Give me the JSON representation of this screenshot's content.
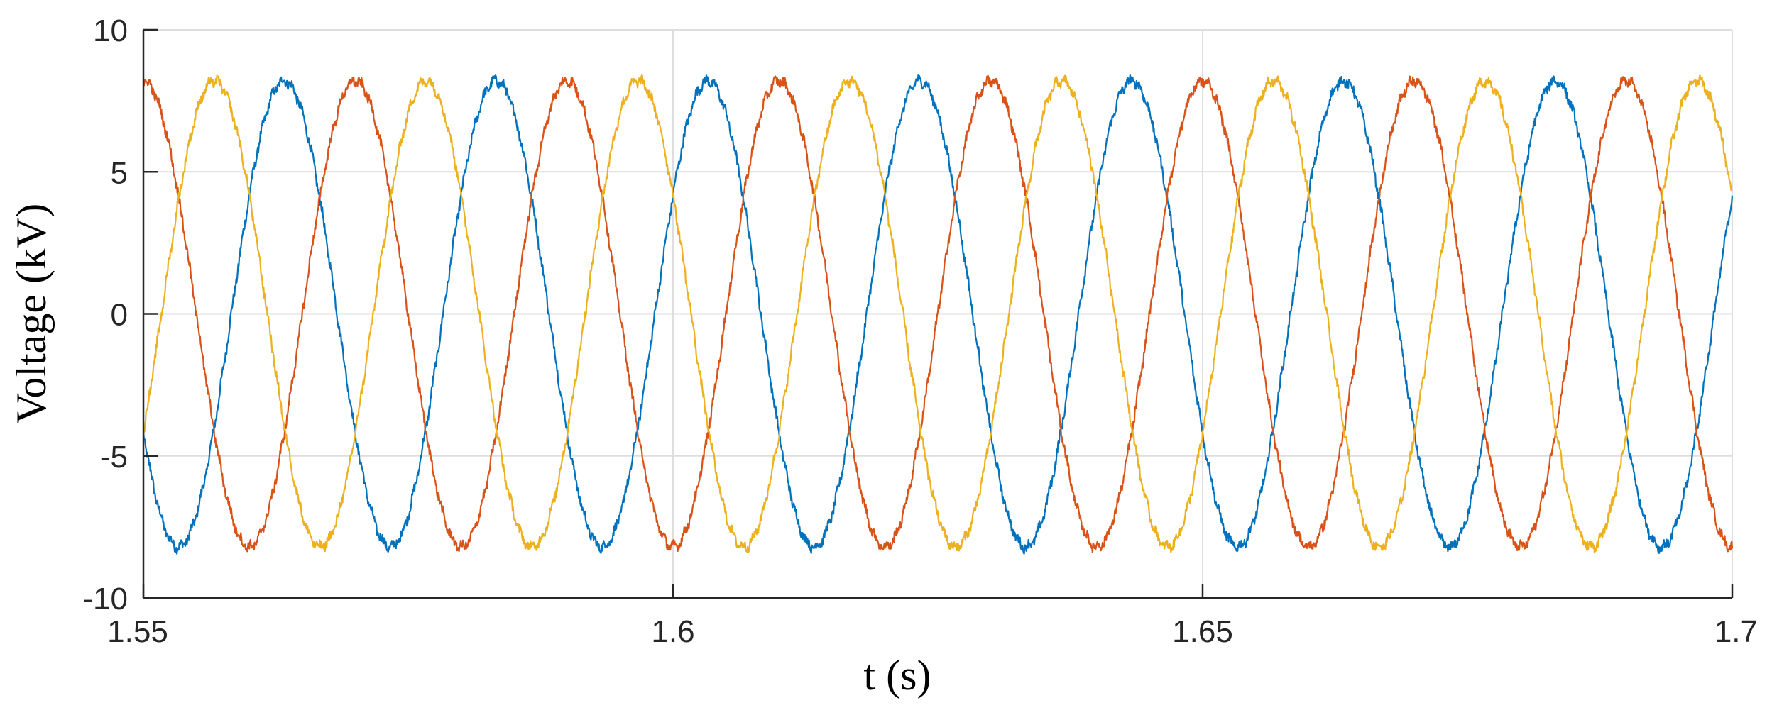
{
  "chart_data": {
    "type": "line",
    "title": "",
    "xlabel": "t (s)",
    "ylabel": "Voltage (kV)",
    "xlim": [
      1.55,
      1.7
    ],
    "ylim": [
      -10,
      10
    ],
    "xticks": [
      1.55,
      1.6,
      1.65,
      1.7
    ],
    "xtick_labels": [
      "1.55",
      "1.6",
      "1.65",
      "1.7"
    ],
    "yticks": [
      10,
      5,
      0,
      -5,
      -10
    ],
    "ytick_labels": [
      "10",
      "5",
      "0",
      "-5",
      "-10"
    ],
    "grid": true,
    "legend": "none",
    "frequency_hz": 50,
    "amplitude_kv": 8.2,
    "noise_kv": 0.2,
    "series": [
      {
        "color": "#0072BD",
        "x": [
          1.55,
          1.5533,
          1.5583,
          1.5633,
          1.5683,
          1.5733,
          1.5783,
          1.5833,
          1.5883,
          1.5933,
          1.5983,
          1.6033,
          1.6083,
          1.6133,
          1.6183,
          1.6233,
          1.6283,
          1.6333,
          1.6383,
          1.6433,
          1.6483,
          1.6533,
          1.6583,
          1.6633,
          1.6683,
          1.6733,
          1.6783,
          1.6833,
          1.6883,
          1.6933,
          1.6983,
          1.7
        ],
        "y": [
          -4.1,
          -8.2,
          0.0,
          8.2,
          0.0,
          -8.2,
          0.0,
          8.2,
          0.0,
          -8.2,
          0.0,
          8.2,
          0.0,
          -8.2,
          0.0,
          8.2,
          0.0,
          -8.2,
          0.0,
          8.2,
          0.0,
          -8.2,
          0.0,
          8.2,
          0.0,
          -8.2,
          0.0,
          8.2,
          0.0,
          -8.2,
          0.0,
          4.1
        ]
      },
      {
        "color": "#D95319",
        "x": [
          1.55,
          1.5567,
          1.5617,
          1.5667,
          1.5717,
          1.5767,
          1.5817,
          1.5867,
          1.5917,
          1.5967,
          1.6017,
          1.6067,
          1.6117,
          1.6167,
          1.6217,
          1.6267,
          1.6317,
          1.6367,
          1.6417,
          1.6467,
          1.6517,
          1.6567,
          1.6617,
          1.6667,
          1.6717,
          1.6767,
          1.6817,
          1.6867,
          1.6917,
          1.6967,
          1.7
        ],
        "y": [
          8.2,
          0.0,
          -8.2,
          0.0,
          8.2,
          0.0,
          -8.2,
          0.0,
          8.2,
          0.0,
          -8.2,
          0.0,
          8.2,
          0.0,
          -8.2,
          0.0,
          8.2,
          0.0,
          -8.2,
          0.0,
          8.2,
          0.0,
          -8.2,
          0.0,
          8.2,
          0.0,
          -8.2,
          0.0,
          8.2,
          0.0,
          -8.2
        ]
      },
      {
        "color": "#EDB120",
        "x": [
          1.55,
          1.5517,
          1.5567,
          1.5617,
          1.5667,
          1.5717,
          1.5767,
          1.5817,
          1.5867,
          1.5917,
          1.5967,
          1.6017,
          1.6067,
          1.6117,
          1.6167,
          1.6217,
          1.6267,
          1.6317,
          1.6367,
          1.6417,
          1.6467,
          1.6517,
          1.6567,
          1.6617,
          1.6667,
          1.6717,
          1.6767,
          1.6817,
          1.6867,
          1.6917,
          1.6967,
          1.7
        ],
        "y": [
          -4.1,
          0.0,
          8.2,
          0.0,
          -8.2,
          0.0,
          8.2,
          0.0,
          -8.2,
          0.0,
          8.2,
          0.0,
          -8.2,
          0.0,
          8.2,
          0.0,
          -8.2,
          0.0,
          8.2,
          0.0,
          -8.2,
          0.0,
          8.2,
          0.0,
          -8.2,
          0.0,
          8.2,
          0.0,
          -8.2,
          0.0,
          8.2,
          4.1
        ]
      }
    ]
  }
}
